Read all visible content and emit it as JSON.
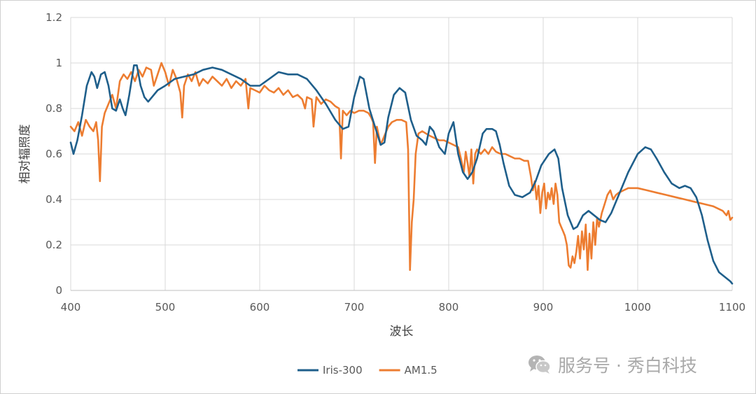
{
  "chart_data": {
    "type": "line",
    "xlabel": "波长",
    "ylabel": "相对辐照度",
    "xlim": [
      400,
      1100
    ],
    "ylim": [
      0,
      1.2
    ],
    "x_ticks": [
      400,
      500,
      600,
      700,
      800,
      900,
      1000,
      1100
    ],
    "y_ticks": [
      0,
      0.2,
      0.4,
      0.6,
      0.8,
      1,
      1.2
    ],
    "grid": true,
    "legend_position": "bottom",
    "series": [
      {
        "name": "Iris-300",
        "color": "#1f5f8b",
        "points": [
          [
            400,
            0.65
          ],
          [
            403,
            0.6
          ],
          [
            407,
            0.66
          ],
          [
            412,
            0.77
          ],
          [
            417,
            0.9
          ],
          [
            422,
            0.96
          ],
          [
            425,
            0.94
          ],
          [
            428,
            0.89
          ],
          [
            432,
            0.95
          ],
          [
            436,
            0.96
          ],
          [
            440,
            0.9
          ],
          [
            444,
            0.8
          ],
          [
            448,
            0.79
          ],
          [
            452,
            0.84
          ],
          [
            455,
            0.8
          ],
          [
            458,
            0.77
          ],
          [
            462,
            0.86
          ],
          [
            467,
            0.99
          ],
          [
            470,
            0.99
          ],
          [
            474,
            0.9
          ],
          [
            478,
            0.85
          ],
          [
            482,
            0.83
          ],
          [
            486,
            0.85
          ],
          [
            492,
            0.88
          ],
          [
            500,
            0.9
          ],
          [
            510,
            0.93
          ],
          [
            520,
            0.94
          ],
          [
            530,
            0.95
          ],
          [
            540,
            0.97
          ],
          [
            550,
            0.98
          ],
          [
            560,
            0.97
          ],
          [
            570,
            0.95
          ],
          [
            580,
            0.93
          ],
          [
            590,
            0.9
          ],
          [
            600,
            0.9
          ],
          [
            610,
            0.93
          ],
          [
            620,
            0.96
          ],
          [
            630,
            0.95
          ],
          [
            640,
            0.95
          ],
          [
            650,
            0.93
          ],
          [
            660,
            0.88
          ],
          [
            670,
            0.82
          ],
          [
            680,
            0.75
          ],
          [
            688,
            0.71
          ],
          [
            694,
            0.72
          ],
          [
            700,
            0.85
          ],
          [
            706,
            0.94
          ],
          [
            710,
            0.93
          ],
          [
            716,
            0.8
          ],
          [
            722,
            0.72
          ],
          [
            728,
            0.64
          ],
          [
            732,
            0.65
          ],
          [
            736,
            0.76
          ],
          [
            742,
            0.86
          ],
          [
            748,
            0.89
          ],
          [
            754,
            0.87
          ],
          [
            760,
            0.75
          ],
          [
            766,
            0.68
          ],
          [
            772,
            0.66
          ],
          [
            776,
            0.64
          ],
          [
            780,
            0.72
          ],
          [
            784,
            0.7
          ],
          [
            790,
            0.63
          ],
          [
            796,
            0.6
          ],
          [
            800,
            0.69
          ],
          [
            805,
            0.74
          ],
          [
            810,
            0.6
          ],
          [
            815,
            0.52
          ],
          [
            820,
            0.49
          ],
          [
            825,
            0.52
          ],
          [
            830,
            0.58
          ],
          [
            836,
            0.69
          ],
          [
            840,
            0.71
          ],
          [
            846,
            0.71
          ],
          [
            850,
            0.7
          ],
          [
            854,
            0.64
          ],
          [
            858,
            0.56
          ],
          [
            864,
            0.46
          ],
          [
            870,
            0.42
          ],
          [
            878,
            0.41
          ],
          [
            886,
            0.43
          ],
          [
            892,
            0.48
          ],
          [
            898,
            0.55
          ],
          [
            906,
            0.6
          ],
          [
            912,
            0.62
          ],
          [
            916,
            0.58
          ],
          [
            920,
            0.45
          ],
          [
            926,
            0.33
          ],
          [
            932,
            0.27
          ],
          [
            936,
            0.28
          ],
          [
            942,
            0.33
          ],
          [
            948,
            0.35
          ],
          [
            954,
            0.33
          ],
          [
            960,
            0.31
          ],
          [
            966,
            0.3
          ],
          [
            972,
            0.34
          ],
          [
            980,
            0.42
          ],
          [
            990,
            0.52
          ],
          [
            1000,
            0.6
          ],
          [
            1008,
            0.63
          ],
          [
            1014,
            0.62
          ],
          [
            1020,
            0.58
          ],
          [
            1028,
            0.52
          ],
          [
            1036,
            0.47
          ],
          [
            1044,
            0.45
          ],
          [
            1050,
            0.46
          ],
          [
            1056,
            0.45
          ],
          [
            1062,
            0.41
          ],
          [
            1068,
            0.33
          ],
          [
            1074,
            0.22
          ],
          [
            1080,
            0.13
          ],
          [
            1086,
            0.08
          ],
          [
            1092,
            0.06
          ],
          [
            1098,
            0.04
          ],
          [
            1100,
            0.03
          ]
        ]
      },
      {
        "name": "AM1.5",
        "color": "#ed7d31",
        "points": [
          [
            400,
            0.72
          ],
          [
            404,
            0.7
          ],
          [
            408,
            0.74
          ],
          [
            412,
            0.68
          ],
          [
            416,
            0.75
          ],
          [
            420,
            0.72
          ],
          [
            424,
            0.7
          ],
          [
            427,
            0.74
          ],
          [
            429,
            0.66
          ],
          [
            431,
            0.48
          ],
          [
            433,
            0.72
          ],
          [
            436,
            0.78
          ],
          [
            440,
            0.82
          ],
          [
            444,
            0.86
          ],
          [
            448,
            0.8
          ],
          [
            452,
            0.92
          ],
          [
            456,
            0.95
          ],
          [
            460,
            0.93
          ],
          [
            464,
            0.96
          ],
          [
            468,
            0.92
          ],
          [
            472,
            0.97
          ],
          [
            476,
            0.94
          ],
          [
            480,
            0.98
          ],
          [
            485,
            0.97
          ],
          [
            488,
            0.9
          ],
          [
            492,
            0.95
          ],
          [
            496,
            1.0
          ],
          [
            500,
            0.96
          ],
          [
            504,
            0.9
          ],
          [
            508,
            0.97
          ],
          [
            512,
            0.93
          ],
          [
            516,
            0.87
          ],
          [
            518,
            0.76
          ],
          [
            520,
            0.9
          ],
          [
            524,
            0.95
          ],
          [
            528,
            0.92
          ],
          [
            532,
            0.96
          ],
          [
            536,
            0.9
          ],
          [
            540,
            0.93
          ],
          [
            545,
            0.91
          ],
          [
            550,
            0.94
          ],
          [
            555,
            0.92
          ],
          [
            560,
            0.9
          ],
          [
            565,
            0.93
          ],
          [
            570,
            0.89
          ],
          [
            575,
            0.92
          ],
          [
            580,
            0.9
          ],
          [
            585,
            0.93
          ],
          [
            588,
            0.8
          ],
          [
            590,
            0.89
          ],
          [
            595,
            0.88
          ],
          [
            600,
            0.87
          ],
          [
            605,
            0.9
          ],
          [
            610,
            0.88
          ],
          [
            615,
            0.87
          ],
          [
            620,
            0.89
          ],
          [
            625,
            0.86
          ],
          [
            630,
            0.88
          ],
          [
            635,
            0.85
          ],
          [
            640,
            0.86
          ],
          [
            645,
            0.84
          ],
          [
            648,
            0.8
          ],
          [
            650,
            0.85
          ],
          [
            655,
            0.84
          ],
          [
            657,
            0.72
          ],
          [
            660,
            0.85
          ],
          [
            665,
            0.82
          ],
          [
            670,
            0.84
          ],
          [
            675,
            0.83
          ],
          [
            680,
            0.81
          ],
          [
            684,
            0.8
          ],
          [
            686,
            0.58
          ],
          [
            688,
            0.79
          ],
          [
            692,
            0.77
          ],
          [
            696,
            0.79
          ],
          [
            700,
            0.78
          ],
          [
            705,
            0.79
          ],
          [
            710,
            0.79
          ],
          [
            715,
            0.78
          ],
          [
            718,
            0.76
          ],
          [
            720,
            0.74
          ],
          [
            722,
            0.56
          ],
          [
            724,
            0.72
          ],
          [
            728,
            0.64
          ],
          [
            732,
            0.68
          ],
          [
            736,
            0.72
          ],
          [
            740,
            0.74
          ],
          [
            745,
            0.75
          ],
          [
            750,
            0.75
          ],
          [
            755,
            0.74
          ],
          [
            757,
            0.62
          ],
          [
            759,
            0.09
          ],
          [
            761,
            0.3
          ],
          [
            763,
            0.4
          ],
          [
            765,
            0.6
          ],
          [
            768,
            0.69
          ],
          [
            772,
            0.7
          ],
          [
            776,
            0.69
          ],
          [
            780,
            0.68
          ],
          [
            785,
            0.67
          ],
          [
            790,
            0.66
          ],
          [
            795,
            0.66
          ],
          [
            800,
            0.65
          ],
          [
            805,
            0.64
          ],
          [
            810,
            0.63
          ],
          [
            813,
            0.58
          ],
          [
            816,
            0.52
          ],
          [
            818,
            0.61
          ],
          [
            820,
            0.56
          ],
          [
            822,
            0.5
          ],
          [
            824,
            0.62
          ],
          [
            826,
            0.47
          ],
          [
            828,
            0.6
          ],
          [
            830,
            0.62
          ],
          [
            834,
            0.6
          ],
          [
            838,
            0.62
          ],
          [
            842,
            0.6
          ],
          [
            846,
            0.63
          ],
          [
            850,
            0.61
          ],
          [
            855,
            0.6
          ],
          [
            860,
            0.6
          ],
          [
            865,
            0.59
          ],
          [
            870,
            0.58
          ],
          [
            875,
            0.58
          ],
          [
            880,
            0.57
          ],
          [
            884,
            0.57
          ],
          [
            887,
            0.5
          ],
          [
            889,
            0.44
          ],
          [
            891,
            0.48
          ],
          [
            893,
            0.4
          ],
          [
            895,
            0.46
          ],
          [
            897,
            0.34
          ],
          [
            899,
            0.43
          ],
          [
            901,
            0.47
          ],
          [
            903,
            0.36
          ],
          [
            905,
            0.43
          ],
          [
            907,
            0.4
          ],
          [
            909,
            0.45
          ],
          [
            911,
            0.38
          ],
          [
            913,
            0.47
          ],
          [
            915,
            0.42
          ],
          [
            917,
            0.3
          ],
          [
            919,
            0.28
          ],
          [
            921,
            0.26
          ],
          [
            923,
            0.24
          ],
          [
            925,
            0.2
          ],
          [
            927,
            0.11
          ],
          [
            929,
            0.1
          ],
          [
            931,
            0.15
          ],
          [
            933,
            0.12
          ],
          [
            935,
            0.17
          ],
          [
            937,
            0.24
          ],
          [
            939,
            0.14
          ],
          [
            941,
            0.26
          ],
          [
            943,
            0.18
          ],
          [
            945,
            0.29
          ],
          [
            947,
            0.09
          ],
          [
            949,
            0.25
          ],
          [
            951,
            0.14
          ],
          [
            953,
            0.3
          ],
          [
            955,
            0.2
          ],
          [
            957,
            0.32
          ],
          [
            959,
            0.28
          ],
          [
            962,
            0.34
          ],
          [
            965,
            0.38
          ],
          [
            968,
            0.42
          ],
          [
            971,
            0.44
          ],
          [
            974,
            0.4
          ],
          [
            977,
            0.42
          ],
          [
            980,
            0.43
          ],
          [
            985,
            0.44
          ],
          [
            990,
            0.45
          ],
          [
            995,
            0.45
          ],
          [
            1000,
            0.45
          ],
          [
            1010,
            0.44
          ],
          [
            1020,
            0.43
          ],
          [
            1030,
            0.42
          ],
          [
            1040,
            0.41
          ],
          [
            1050,
            0.4
          ],
          [
            1060,
            0.39
          ],
          [
            1070,
            0.38
          ],
          [
            1080,
            0.37
          ],
          [
            1090,
            0.35
          ],
          [
            1094,
            0.33
          ],
          [
            1096,
            0.35
          ],
          [
            1098,
            0.31
          ],
          [
            1100,
            0.32
          ]
        ]
      }
    ]
  },
  "watermark": {
    "icon": "wechat-icon",
    "text": "服务号 · 秀白科技"
  }
}
